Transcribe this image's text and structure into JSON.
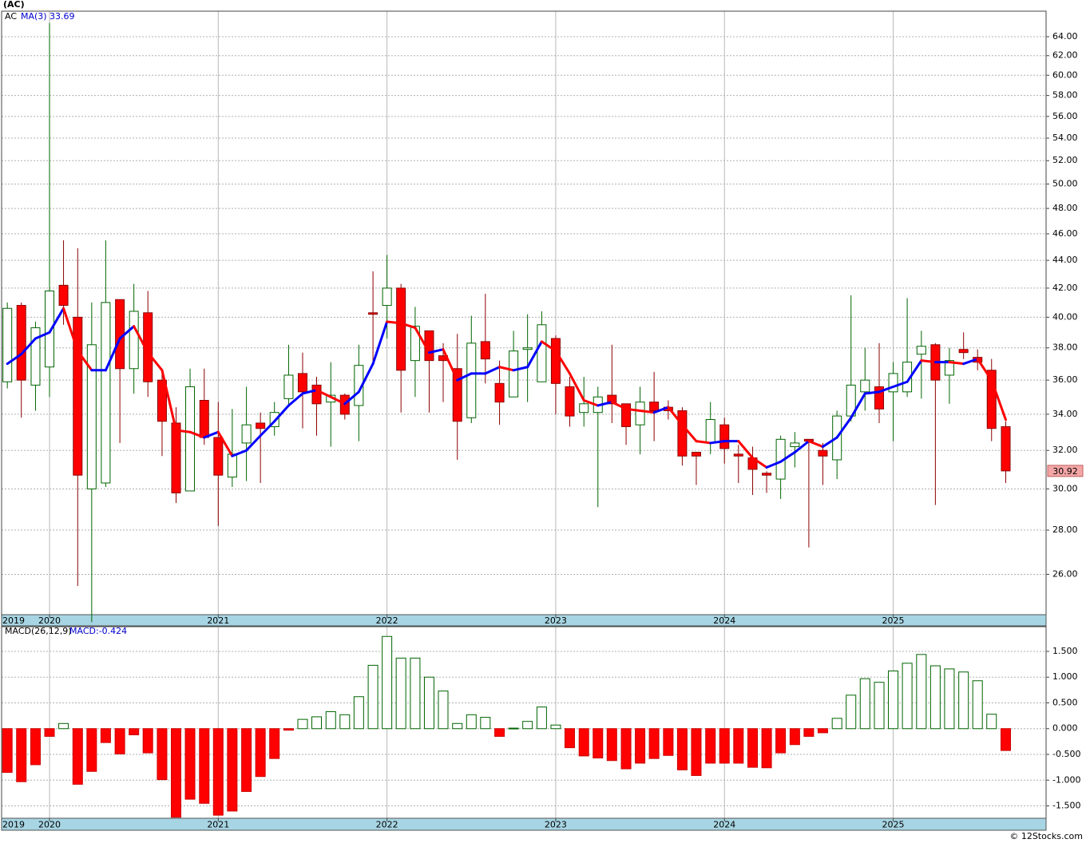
{
  "chart_data": [
    {
      "type": "candlestick",
      "title": "(AC)",
      "ticker": "AC",
      "x": [
        2019.75,
        2019.833,
        2019.917,
        2020.0,
        2020.083,
        2020.167,
        2020.25,
        2020.333,
        2020.417,
        2020.5,
        2020.583,
        2020.667,
        2020.75,
        2020.833,
        2020.917,
        2021.0,
        2021.083,
        2021.167,
        2021.25,
        2021.333,
        2021.417,
        2021.5,
        2021.583,
        2021.667,
        2021.75,
        2021.833,
        2021.917,
        2022.0,
        2022.083,
        2022.167,
        2022.25,
        2022.333,
        2022.417,
        2022.5,
        2022.583,
        2022.667,
        2022.75,
        2022.833,
        2022.917,
        2023.0,
        2023.083,
        2023.167,
        2023.25,
        2023.333,
        2023.417,
        2023.5,
        2023.583,
        2023.667,
        2023.75,
        2023.833,
        2023.917,
        2024.0,
        2024.083,
        2024.167,
        2024.25,
        2024.333,
        2024.417,
        2024.5,
        2024.583,
        2024.667,
        2024.75,
        2024.833,
        2024.917,
        2025.0,
        2025.083,
        2025.167,
        2025.25,
        2025.333,
        2025.417,
        2025.5,
        2025.583,
        2025.667
      ],
      "open": [
        35.9,
        40.8,
        35.7,
        36.8,
        42.2,
        40,
        30,
        30.3,
        41.2,
        36.7,
        40.3,
        36,
        33.5,
        29.9,
        34.8,
        32.7,
        30.6,
        32.4,
        33.5,
        33.3,
        34.9,
        36.4,
        35.7,
        34.7,
        35.1,
        34.5,
        40.3,
        40.8,
        42,
        37.2,
        39.1,
        37.5,
        36.7,
        33.8,
        38.4,
        35.8,
        35,
        37.9,
        35.9,
        38.6,
        35.6,
        34.1,
        34.1,
        35.1,
        34.6,
        33.4,
        34.7,
        34.4,
        34.2,
        31.9,
        32.4,
        33.4,
        31.8,
        31.6,
        30.8,
        30.5,
        32.2,
        32.6,
        32,
        31.5,
        33.9,
        35.3,
        35.6,
        35.3,
        35.3,
        37.6,
        38.2,
        36.3,
        37.9,
        37.4,
        36.6,
        33.3
      ],
      "high": [
        41,
        41,
        39.7,
        65.5,
        45.5,
        44.9,
        41,
        45.5,
        41.2,
        42.3,
        41.8,
        36.5,
        34.4,
        36.7,
        36.7,
        34.7,
        34.3,
        35.6,
        34.1,
        34.7,
        38.2,
        37.7,
        36.2,
        37.1,
        35.2,
        38.2,
        43.2,
        44.4,
        42.3,
        40.7,
        39.1,
        38.3,
        38.9,
        40.1,
        41.6,
        37.2,
        39.1,
        40.2,
        40.4,
        38.8,
        36.2,
        36.2,
        35.6,
        38.2,
        34.6,
        35.6,
        36.5,
        34.8,
        34.4,
        31.9,
        34.7,
        33.8,
        32.3,
        32.2,
        30.9,
        32.8,
        33,
        32.6,
        32.4,
        34.2,
        41.5,
        38,
        38.3,
        37.1,
        41.3,
        39.1,
        38.3,
        38,
        39,
        37.9,
        37.3,
        33.6
      ],
      "low": [
        35.5,
        33.8,
        34.2,
        35,
        39.5,
        25.5,
        24,
        30.1,
        32.4,
        35.2,
        35,
        31.7,
        29.3,
        29.9,
        32.3,
        28.2,
        30.1,
        30.4,
        30.3,
        32.8,
        34.5,
        33.2,
        32.8,
        32.2,
        33.7,
        32.5,
        37,
        38.6,
        34.1,
        35,
        34.1,
        34.7,
        31.5,
        33.5,
        35.8,
        33.4,
        35,
        34.7,
        35.9,
        34,
        33.3,
        33.3,
        29.1,
        33.5,
        32.3,
        31.8,
        32.5,
        33.7,
        31.2,
        30.2,
        31.8,
        31.3,
        30.3,
        29.7,
        29.8,
        29.5,
        31.1,
        27.2,
        30.2,
        30.5,
        33.6,
        34.2,
        33.5,
        32.5,
        35,
        34.9,
        29.2,
        34.6,
        37.3,
        36.6,
        32.5,
        30.3
      ],
      "close": [
        40.6,
        36.0,
        39.3,
        41.8,
        40.8,
        30.7,
        38.2,
        41,
        36.7,
        40.4,
        35.9,
        33.6,
        29.8,
        35.6,
        32.7,
        30.7,
        31.8,
        33.4,
        33.2,
        34.1,
        36.3,
        35.3,
        34.6,
        35.1,
        34,
        36.9,
        40.2,
        42,
        36.6,
        39.4,
        37.2,
        37.2,
        33.6,
        38.3,
        37.3,
        34.7,
        37.8,
        38,
        39.5,
        35.8,
        33.9,
        34.6,
        35,
        34.6,
        33.3,
        34.7,
        34.2,
        34.2,
        31.7,
        31.7,
        33.7,
        32.1,
        31.7,
        31,
        30.7,
        32.6,
        32.4,
        32.5,
        31.7,
        33.9,
        35.7,
        36,
        34.3,
        36.4,
        37.1,
        38.1,
        36,
        37.2,
        37.7,
        37.1,
        33.2,
        30.92
      ],
      "up_color": "#ffffff",
      "up_edge": "#006400",
      "down_color": "#ff0000",
      "down_edge": "#8b0000",
      "moving_average": {
        "name": "MA(3)",
        "rising_color": "#0000ff",
        "falling_color": "#ff0000",
        "values": [
          37.0,
          37.6,
          38.6,
          39.0,
          40.6,
          37.8,
          36.6,
          36.6,
          38.6,
          39.4,
          37.7,
          36.6,
          33.1,
          33.0,
          32.7,
          33.0,
          31.7,
          32.0,
          32.8,
          33.6,
          34.5,
          35.2,
          35.4,
          35.0,
          34.6,
          35.3,
          37.0,
          39.7,
          39.6,
          39.3,
          37.7,
          37.9,
          36.0,
          36.4,
          36.4,
          36.8,
          36.6,
          36.8,
          38.4,
          37.8,
          36.4,
          34.8,
          34.5,
          34.7,
          34.3,
          34.2,
          34.1,
          34.4,
          33.4,
          32.5,
          32.4,
          32.5,
          32.5,
          31.6,
          31.1,
          31.4,
          31.9,
          32.5,
          32.2,
          32.7,
          33.8,
          35.2,
          35.3,
          35.6,
          35.9,
          37.2,
          37.1,
          37.1,
          37.0,
          37.3,
          36.0,
          33.69
        ]
      },
      "xlim": [
        2019.716,
        2025.906
      ],
      "xticks": [
        {
          "value": 2019.716,
          "label": "2019"
        },
        {
          "value": 2020,
          "label": "2020"
        },
        {
          "value": 2021,
          "label": "2021"
        },
        {
          "value": 2022,
          "label": "2022"
        },
        {
          "value": 2023,
          "label": "2023"
        },
        {
          "value": 2024,
          "label": "2024"
        },
        {
          "value": 2025,
          "label": "2025"
        }
      ],
      "ylim": [
        24.3,
        66.8
      ],
      "log_y": true,
      "grid": true,
      "yticks": [
        {
          "value": 26,
          "label": "26.00"
        },
        {
          "value": 28,
          "label": "28.00"
        },
        {
          "value": 30,
          "label": "30.00"
        },
        {
          "value": 32,
          "label": "32.00"
        },
        {
          "value": 34,
          "label": "34.00"
        },
        {
          "value": 36,
          "label": "36.00"
        },
        {
          "value": 38,
          "label": "38.00"
        },
        {
          "value": 40,
          "label": "40.00"
        },
        {
          "value": 42,
          "label": "42.00"
        },
        {
          "value": 44,
          "label": "44.00"
        },
        {
          "value": 46,
          "label": "46.00"
        },
        {
          "value": 48,
          "label": "48.00"
        },
        {
          "value": 50,
          "label": "50.00"
        },
        {
          "value": 52,
          "label": "52.00"
        },
        {
          "value": 54,
          "label": "54.00"
        },
        {
          "value": 56,
          "label": "56.00"
        },
        {
          "value": 58,
          "label": "58.00"
        },
        {
          "value": 60,
          "label": "60.00"
        },
        {
          "value": 62,
          "label": "62.00"
        },
        {
          "value": 64,
          "label": "64.00"
        }
      ]
    },
    {
      "type": "bar",
      "name": "MACD(26,12,9)",
      "value_name": "MACD:",
      "x": [
        2019.75,
        2019.833,
        2019.917,
        2020.0,
        2020.083,
        2020.167,
        2020.25,
        2020.333,
        2020.417,
        2020.5,
        2020.583,
        2020.667,
        2020.75,
        2020.833,
        2020.917,
        2021.0,
        2021.083,
        2021.167,
        2021.25,
        2021.333,
        2021.417,
        2021.5,
        2021.583,
        2021.667,
        2021.75,
        2021.833,
        2021.917,
        2022.0,
        2022.083,
        2022.167,
        2022.25,
        2022.333,
        2022.417,
        2022.5,
        2022.583,
        2022.667,
        2022.75,
        2022.833,
        2022.917,
        2023.0,
        2023.083,
        2023.167,
        2023.25,
        2023.333,
        2023.417,
        2023.5,
        2023.583,
        2023.667,
        2023.75,
        2023.833,
        2023.917,
        2024.0,
        2024.083,
        2024.167,
        2024.25,
        2024.333,
        2024.417,
        2024.5,
        2024.583,
        2024.667,
        2024.75,
        2024.833,
        2024.917,
        2025.0,
        2025.083,
        2025.167,
        2025.25,
        2025.333,
        2025.417,
        2025.5,
        2025.583,
        2025.667
      ],
      "values": [
        -0.85,
        -1.03,
        -0.7,
        -0.15,
        0.1,
        -1.08,
        -0.83,
        -0.27,
        -0.49,
        -0.12,
        -0.47,
        -0.99,
        -1.72,
        -1.37,
        -1.45,
        -1.68,
        -1.6,
        -1.22,
        -0.93,
        -0.58,
        -0.03,
        0.18,
        0.23,
        0.33,
        0.27,
        0.62,
        1.23,
        1.79,
        1.37,
        1.37,
        1.0,
        0.73,
        0.1,
        0.27,
        0.22,
        -0.15,
        0.01,
        0.14,
        0.42,
        0.07,
        -0.37,
        -0.53,
        -0.57,
        -0.62,
        -0.78,
        -0.67,
        -0.58,
        -0.52,
        -0.8,
        -0.91,
        -0.67,
        -0.67,
        -0.67,
        -0.75,
        -0.76,
        -0.47,
        -0.31,
        -0.15,
        -0.08,
        0.2,
        0.65,
        0.97,
        0.9,
        1.12,
        1.27,
        1.44,
        1.22,
        1.16,
        1.1,
        0.93,
        0.28,
        -0.424
      ],
      "positive_color": "#ffffff",
      "positive_edge": "#006400",
      "negative_color": "#ff0000",
      "negative_edge": "#cc0000",
      "xlim": [
        2019.716,
        2025.906
      ],
      "xticks": [
        {
          "value": 2019.716,
          "label": "2019"
        },
        {
          "value": 2020,
          "label": "2020"
        },
        {
          "value": 2021,
          "label": "2021"
        },
        {
          "value": 2022,
          "label": "2022"
        },
        {
          "value": 2023,
          "label": "2023"
        },
        {
          "value": 2024,
          "label": "2024"
        },
        {
          "value": 2025,
          "label": "2025"
        }
      ],
      "ylim": [
        -1.74,
        1.98
      ],
      "grid": true,
      "yticks": [
        {
          "value": -1.5,
          "label": "-1.500"
        },
        {
          "value": -1,
          "label": "-1.000"
        },
        {
          "value": -0.5,
          "label": "-0.500"
        },
        {
          "value": 0,
          "label": "0.000"
        },
        {
          "value": 0.5,
          "label": "0.500"
        },
        {
          "value": 1,
          "label": "1.000"
        },
        {
          "value": 1.5,
          "label": "1.500"
        }
      ]
    }
  ],
  "footer": "© 12Stocks.com"
}
